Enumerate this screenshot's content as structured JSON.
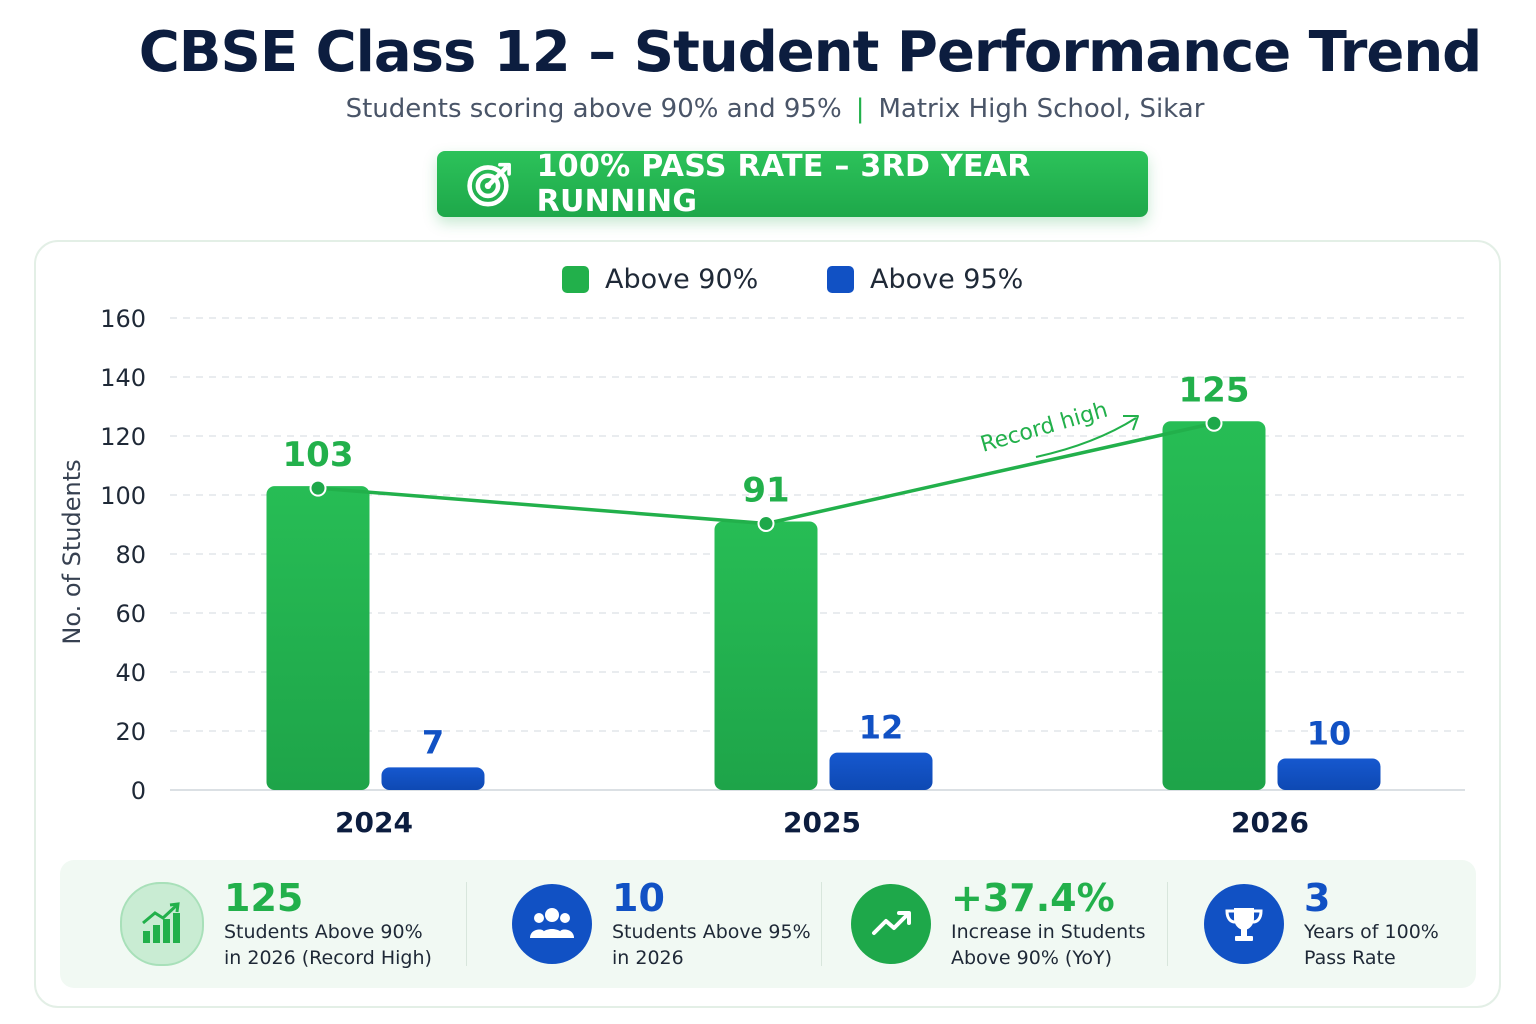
{
  "header": {
    "title": "CBSE Class 12 – Student Performance Trend",
    "subtitle_left": "Students scoring above 90% and 95%",
    "subtitle_sep": "|",
    "subtitle_right": "Matrix High School, Sikar",
    "badge_text": "100% PASS RATE – 3RD YEAR RUNNING",
    "badge_icon": "target-icon"
  },
  "colors": {
    "green": "#22b04b",
    "blue": "#1151c4",
    "navy": "#0c1d3f"
  },
  "chart_data": {
    "type": "bar",
    "categories": [
      "2024",
      "2025",
      "2026"
    ],
    "series": [
      {
        "name": "Above 90%",
        "values": [
          103,
          91,
          125
        ],
        "color": "#22b04b"
      },
      {
        "name": "Above 95%",
        "values": [
          7,
          12,
          10
        ],
        "color": "#1151c4"
      }
    ],
    "trend_line_series": "Above 90%",
    "annotation": "Record high",
    "ylabel": "No. of Students",
    "xlabel": "",
    "ylim": [
      0,
      160
    ],
    "yticks": [
      0,
      20,
      40,
      60,
      80,
      100,
      120,
      140,
      160
    ],
    "grid": true,
    "legend_position": "top-center"
  },
  "stats": [
    {
      "value": "125",
      "desc": "Students Above 90%\nin 2026 (Record High)",
      "icon": "bar-chart-up-icon",
      "color": "#22b04b"
    },
    {
      "value": "10",
      "desc": "Students Above 95%\nin 2026",
      "icon": "users-group-icon",
      "color": "#1151c4"
    },
    {
      "value": "+37.4%",
      "desc": "Increase in Students\nAbove 90% (YoY)",
      "icon": "trend-up-icon",
      "color": "#22b04b"
    },
    {
      "value": "3",
      "desc": "Years of 100%\nPass Rate",
      "icon": "trophy-icon",
      "color": "#1151c4"
    }
  ]
}
